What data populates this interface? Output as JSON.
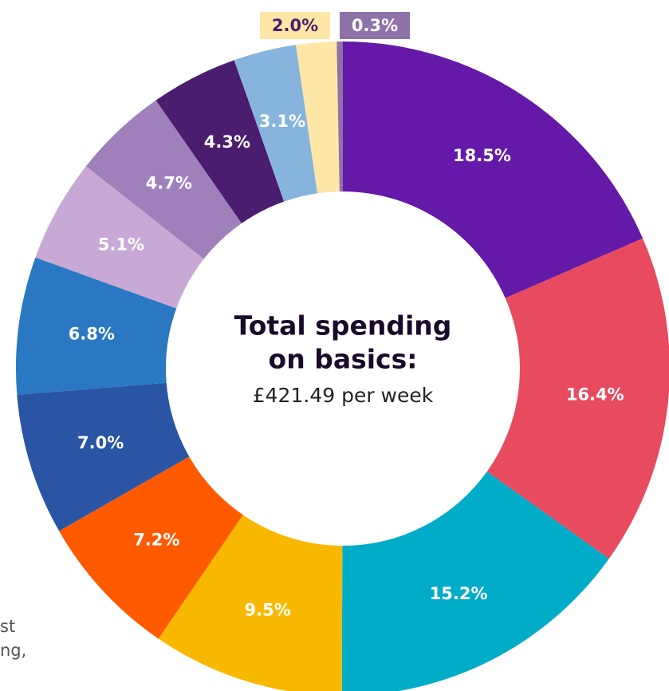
{
  "chart_data": {
    "type": "donut",
    "center_lines": [
      "Total spending",
      "on basics:"
    ],
    "center_sub": "£421.49 per week",
    "fragments": [
      "st",
      "ng,"
    ],
    "values": [
      18.5,
      16.4,
      15.2,
      9.5,
      7.2,
      7.0,
      6.8,
      5.1,
      4.7,
      4.3,
      3.1,
      2.0,
      0.3
    ],
    "value_labels": [
      "18.5%",
      "16.4%",
      "15.2%",
      "9.5%",
      "7.2%",
      "7.0%",
      "6.8%",
      "5.1%",
      "4.7%",
      "4.3%",
      "3.1%",
      "2.0%",
      "0.3%"
    ],
    "colors": [
      "#6419a8",
      "#e84a5f",
      "#00acc8",
      "#f9b800",
      "#ff5a00",
      "#2a55a5",
      "#2a78c2",
      "#c8a8d4",
      "#9f80bb",
      "#4a1d6e",
      "#86b4dc",
      "#fde6a6",
      "#8e72a8"
    ]
  }
}
